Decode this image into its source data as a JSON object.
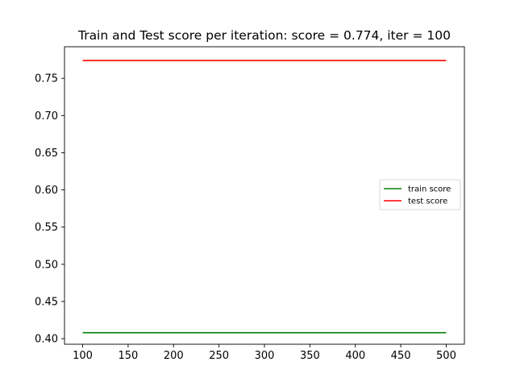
{
  "chart_data": {
    "type": "line",
    "title": "Train and Test score per iteration: score = 0.774, iter = 100",
    "xlabel": "",
    "ylabel": "",
    "xlim": [
      80,
      520
    ],
    "ylim": [
      0.3925,
      0.7925
    ],
    "x_ticks": [
      100,
      150,
      200,
      250,
      300,
      350,
      400,
      450,
      500
    ],
    "y_ticks": [
      0.4,
      0.45,
      0.5,
      0.55,
      0.6,
      0.65,
      0.7,
      0.75
    ],
    "y_tick_labels": [
      "0.40",
      "0.45",
      "0.50",
      "0.55",
      "0.60",
      "0.65",
      "0.70",
      "0.75"
    ],
    "grid": false,
    "legend_position": "center-right",
    "x": [
      100,
      500
    ],
    "series": [
      {
        "name": "train score",
        "color": "#008000",
        "values": [
          0.408,
          0.408
        ]
      },
      {
        "name": "test score",
        "color": "#ff0000",
        "values": [
          0.774,
          0.774
        ]
      }
    ]
  }
}
